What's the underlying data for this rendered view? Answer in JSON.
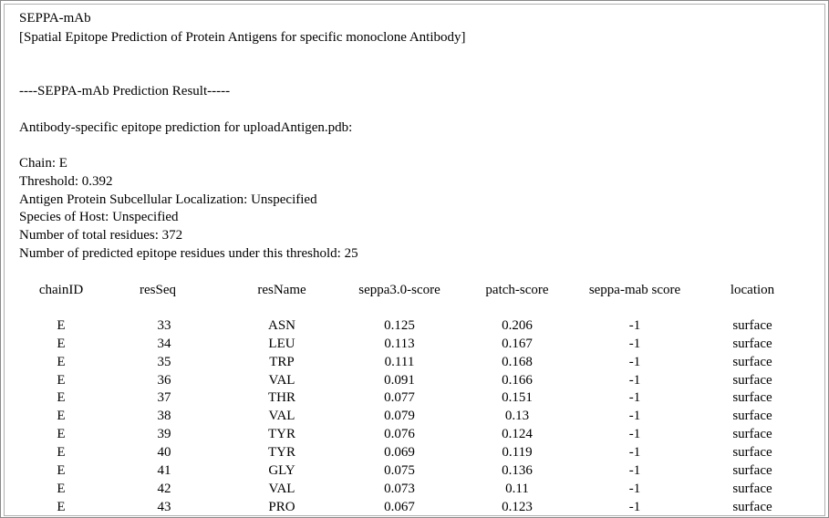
{
  "header": {
    "title": "SEPPA-mAb",
    "subtitle": "[Spatial Epitope Prediction of Protein Antigens for specific monoclone Antibody]"
  },
  "result_heading": "----SEPPA-mAb Prediction Result-----",
  "intro": "Antibody-specific epitope prediction for uploadAntigen.pdb:",
  "info": [
    "Chain: E",
    "Threshold: 0.392",
    "Antigen Protein Subcellular Localization: Unspecified",
    "Species of Host: Unspecified",
    "Number of total residues: 372",
    "Number of predicted epitope residues under this threshold: 25"
  ],
  "table": {
    "columns": [
      "chainID",
      "resSeq",
      "resName",
      "seppa3.0-score",
      "patch-score",
      "seppa-mab score",
      "location"
    ],
    "rows": [
      [
        "E",
        33,
        "ASN",
        0.125,
        0.206,
        -1,
        "surface"
      ],
      [
        "E",
        34,
        "LEU",
        0.113,
        0.167,
        -1,
        "surface"
      ],
      [
        "E",
        35,
        "TRP",
        0.111,
        0.168,
        -1,
        "surface"
      ],
      [
        "E",
        36,
        "VAL",
        0.091,
        0.166,
        -1,
        "surface"
      ],
      [
        "E",
        37,
        "THR",
        0.077,
        0.151,
        -1,
        "surface"
      ],
      [
        "E",
        38,
        "VAL",
        0.079,
        0.13,
        -1,
        "surface"
      ],
      [
        "E",
        39,
        "TYR",
        0.076,
        0.124,
        -1,
        "surface"
      ],
      [
        "E",
        40,
        "TYR",
        0.069,
        0.119,
        -1,
        "surface"
      ],
      [
        "E",
        41,
        "GLY",
        0.075,
        0.136,
        -1,
        "surface"
      ],
      [
        "E",
        42,
        "VAL",
        0.073,
        0.11,
        -1,
        "surface"
      ],
      [
        "E",
        43,
        "PRO",
        0.067,
        0.123,
        -1,
        "surface"
      ]
    ]
  }
}
